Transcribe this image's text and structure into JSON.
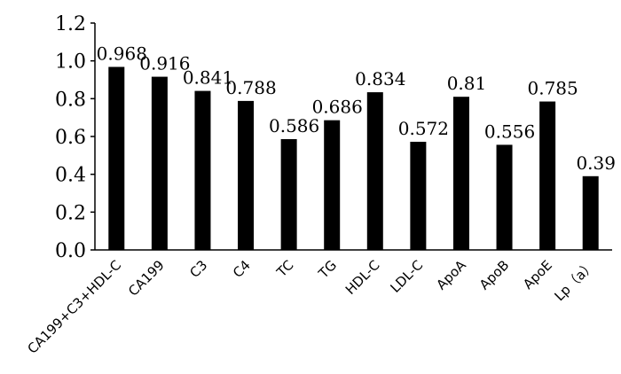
{
  "chart_data": {
    "type": "bar",
    "categories": [
      "CA199+C3+HDL-C",
      "CA199",
      "C3",
      "C4",
      "TC",
      "TG",
      "HDL-C",
      "LDL-C",
      "ApoA",
      "ApoB",
      "ApoE",
      "Lp（a）"
    ],
    "values": [
      0.968,
      0.916,
      0.841,
      0.788,
      0.586,
      0.686,
      0.834,
      0.572,
      0.81,
      0.556,
      0.785,
      0.39
    ],
    "data_labels": [
      "0.968",
      "0.916",
      "0.841",
      "0.788",
      "0.586",
      "0.686",
      "0.834",
      "0.572",
      "0.81",
      "0.556",
      "0.785",
      "0.39"
    ],
    "y_ticks": [
      "0.0",
      "0.2",
      "0.4",
      "0.6",
      "0.8",
      "1.0",
      "1.2"
    ],
    "ylim": [
      0,
      1.2
    ],
    "grid": false,
    "legend": "none",
    "bar_color": "#000000",
    "title": "",
    "xlabel": "",
    "ylabel": ""
  }
}
